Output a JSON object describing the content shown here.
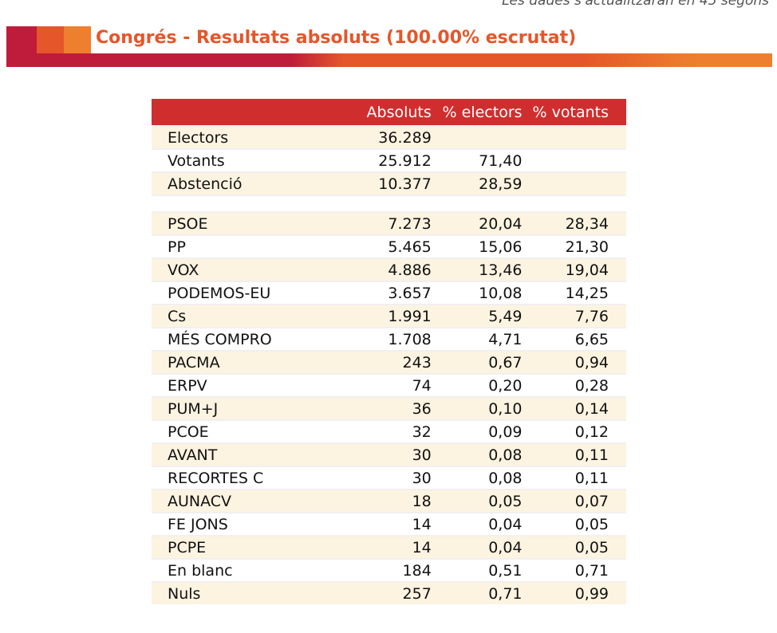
{
  "refresh_notice": "Les dades s'actualitzaran en 45 segons",
  "title": "Congrés - Resultats absoluts (100.00% escrutat)",
  "table": {
    "headers": [
      "",
      "Absoluts",
      "% electors",
      "% votants"
    ],
    "summary": [
      [
        "Electors",
        "36.289",
        "",
        ""
      ],
      [
        "Votants",
        "25.912",
        "71,40",
        ""
      ],
      [
        "Abstenció",
        "10.377",
        "28,59",
        ""
      ]
    ],
    "parties": [
      [
        "PSOE",
        "7.273",
        "20,04",
        "28,34"
      ],
      [
        "PP",
        "5.465",
        "15,06",
        "21,30"
      ],
      [
        "VOX",
        "4.886",
        "13,46",
        "19,04"
      ],
      [
        "PODEMOS-EU",
        "3.657",
        "10,08",
        "14,25"
      ],
      [
        "Cs",
        "1.991",
        "5,49",
        "7,76"
      ],
      [
        "MÉS COMPRO",
        "1.708",
        "4,71",
        "6,65"
      ],
      [
        "PACMA",
        "243",
        "0,67",
        "0,94"
      ],
      [
        "ERPV",
        "74",
        "0,20",
        "0,28"
      ],
      [
        "PUM+J",
        "36",
        "0,10",
        "0,14"
      ],
      [
        "PCOE",
        "32",
        "0,09",
        "0,12"
      ],
      [
        "AVANT",
        "30",
        "0,08",
        "0,11"
      ],
      [
        "RECORTES C",
        "30",
        "0,08",
        "0,11"
      ],
      [
        "AUNACV",
        "18",
        "0,05",
        "0,07"
      ],
      [
        "FE JONS",
        "14",
        "0,04",
        "0,05"
      ],
      [
        "PCPE",
        "14",
        "0,04",
        "0,05"
      ],
      [
        "En blanc",
        "184",
        "0,51",
        "0,71"
      ],
      [
        "Nuls",
        "257",
        "0,71",
        "0,99"
      ]
    ]
  }
}
